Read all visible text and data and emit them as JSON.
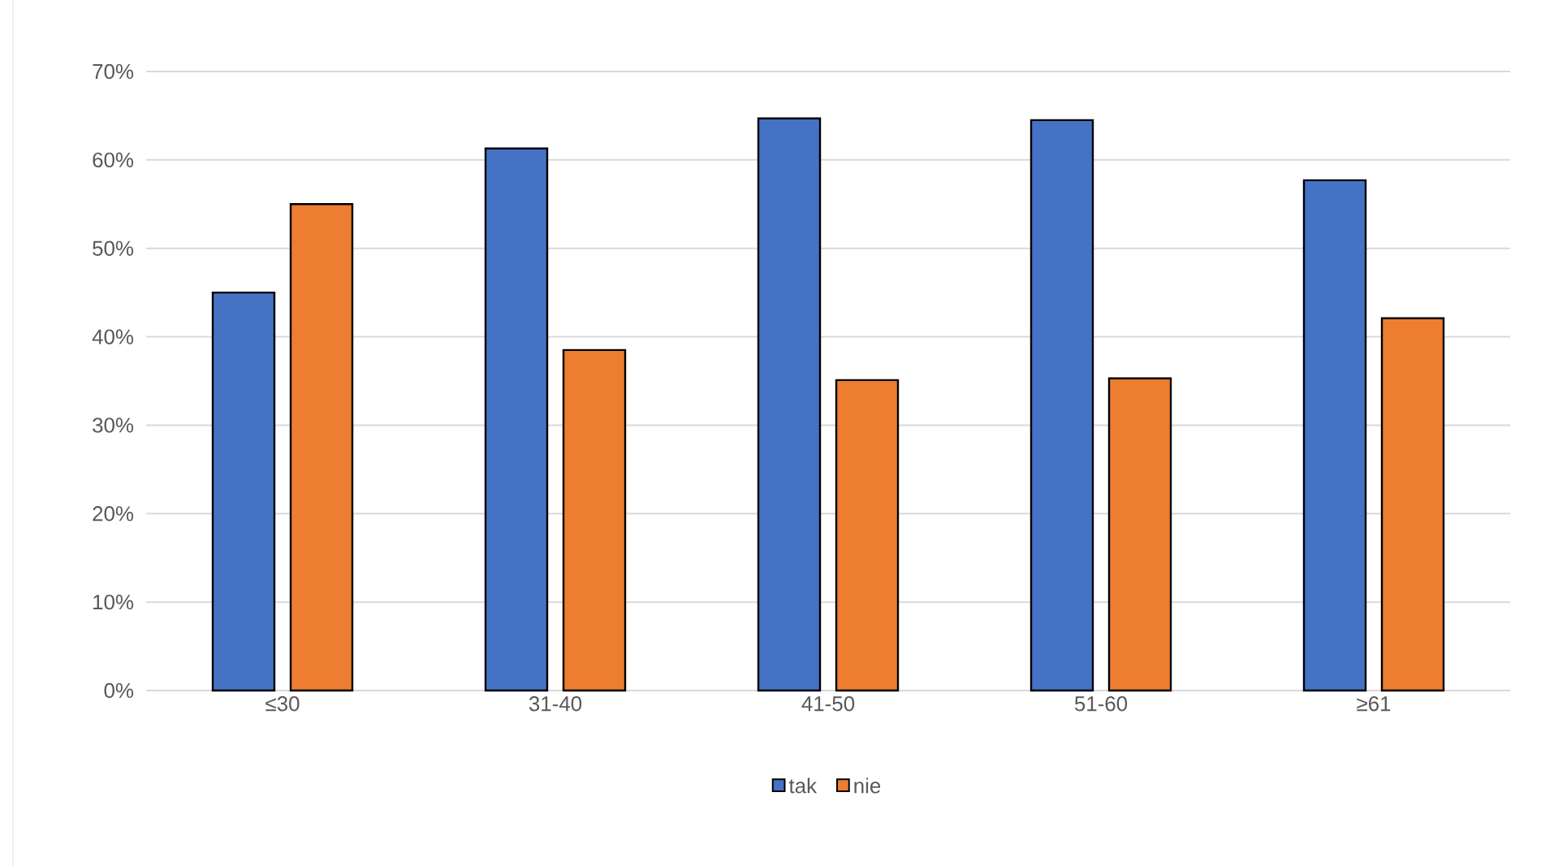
{
  "chart_data": {
    "type": "bar",
    "categories": [
      "≤30",
      "31-40",
      "41-50",
      "51-60",
      "≥61"
    ],
    "series": [
      {
        "name": "tak",
        "color": "#4472c4",
        "values": [
          45.0,
          61.3,
          64.7,
          64.5,
          57.7
        ]
      },
      {
        "name": "nie",
        "color": "#ed7d31",
        "values": [
          55.0,
          38.5,
          35.1,
          35.3,
          42.1
        ]
      }
    ],
    "ylim": [
      0,
      70
    ],
    "yticks": [
      {
        "value": 0,
        "label": "0%"
      },
      {
        "value": 10,
        "label": "10%"
      },
      {
        "value": 20,
        "label": "20%"
      },
      {
        "value": 30,
        "label": "30%"
      },
      {
        "value": 40,
        "label": "40%"
      },
      {
        "value": 50,
        "label": "50%"
      },
      {
        "value": 60,
        "label": "60%"
      },
      {
        "value": 70,
        "label": "70%"
      }
    ],
    "grid": "y",
    "legend": "bottom"
  }
}
